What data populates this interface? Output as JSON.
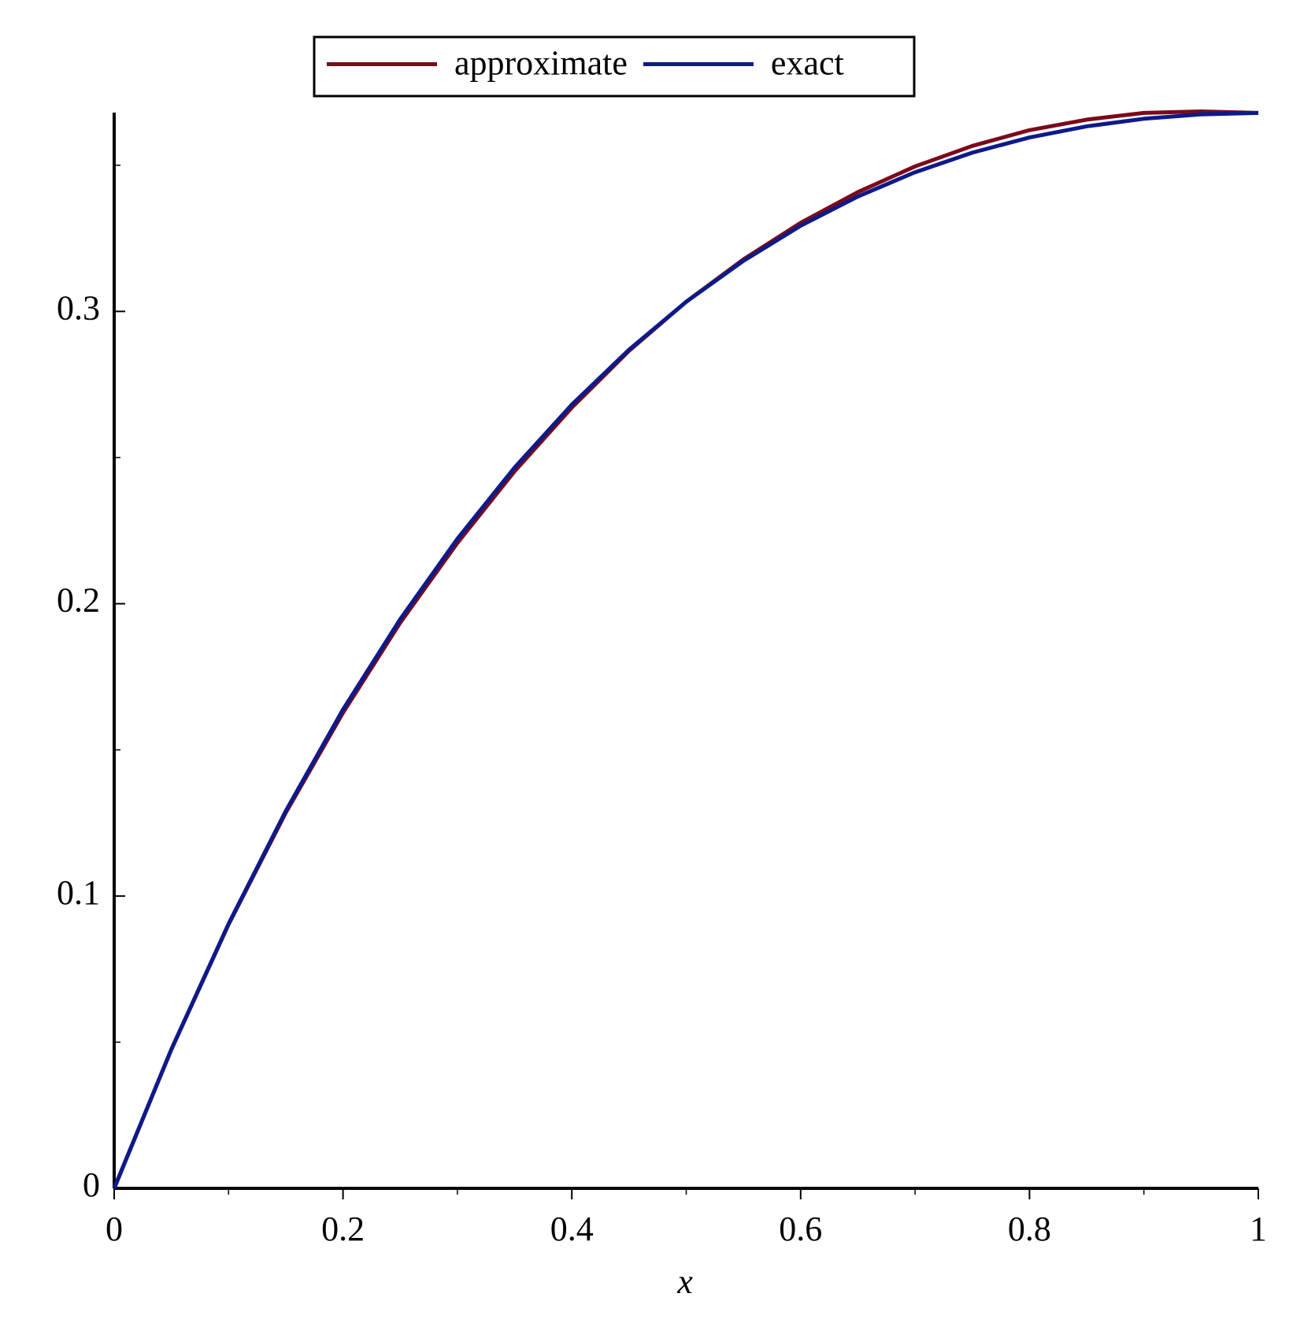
{
  "chart_data": {
    "type": "line",
    "x_label": "x",
    "x": [
      0,
      0.05,
      0.1,
      0.15,
      0.2,
      0.25,
      0.3,
      0.35,
      0.4,
      0.45,
      0.5,
      0.55,
      0.6,
      0.65,
      0.7,
      0.75,
      0.8,
      0.85,
      0.9,
      0.95,
      1
    ],
    "series": [
      {
        "name": "approximate",
        "color": "#7b0a1a",
        "values": [
          0,
          0.0475,
          0.0903,
          0.1285,
          0.1627,
          0.1935,
          0.2208,
          0.2453,
          0.2671,
          0.2865,
          0.3033,
          0.3178,
          0.3303,
          0.3408,
          0.3496,
          0.3566,
          0.362,
          0.3656,
          0.3679,
          0.3684,
          0.3679
        ]
      },
      {
        "name": "exact",
        "color": "#0c1a8a",
        "values": [
          0,
          0.0476,
          0.0905,
          0.1291,
          0.1638,
          0.1947,
          0.2222,
          0.2466,
          0.2681,
          0.2869,
          0.3033,
          0.3173,
          0.3293,
          0.3393,
          0.3476,
          0.3543,
          0.3595,
          0.3633,
          0.3659,
          0.3674,
          0.3679
        ]
      }
    ],
    "xlim": [
      0,
      1
    ],
    "ylim": [
      0,
      0.368
    ],
    "xticks": [
      0,
      0.2,
      0.4,
      0.6,
      0.8,
      1
    ],
    "yticks": [
      0,
      0.1,
      0.2,
      0.3
    ],
    "xminorticks": [
      0.1,
      0.3,
      0.5,
      0.7,
      0.9
    ],
    "yminorticks": [
      0.05,
      0.15,
      0.25,
      0.35
    ],
    "legend": "top"
  }
}
